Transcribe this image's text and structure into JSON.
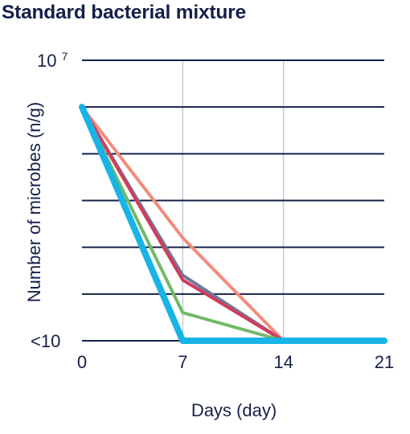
{
  "chart_data": {
    "type": "line",
    "title": "Standard bacterial mixture",
    "xlabel": "Days (day)",
    "ylabel": "Number of microbes (n/g)",
    "x": [
      0,
      7,
      14,
      21
    ],
    "x_ticks": [
      "0",
      "7",
      "14",
      "21"
    ],
    "xlim": [
      0,
      21
    ],
    "y_scale": "log",
    "ylim": [
      1,
      7
    ],
    "y_tick_labels": {
      "top": {
        "base": "10",
        "exp": "7"
      },
      "bottom": "<10"
    },
    "grid": {
      "horizontal": true,
      "vertical_at_x": [
        7,
        14
      ]
    },
    "series": [
      {
        "color": "#f58a7a",
        "values": [
          6,
          3.2,
          1,
          1
        ],
        "width": 4
      },
      {
        "color": "#6c7a9c",
        "values": [
          6,
          2.4,
          1,
          1
        ],
        "width": 4
      },
      {
        "color": "#d23c5a",
        "values": [
          6,
          2.3,
          1,
          1
        ],
        "width": 4
      },
      {
        "color": "#73b968",
        "values": [
          6,
          1.6,
          1,
          1
        ],
        "width": 4
      },
      {
        "color": "#18b4e6",
        "values": [
          6,
          1,
          1,
          1
        ],
        "width": 8
      }
    ]
  }
}
